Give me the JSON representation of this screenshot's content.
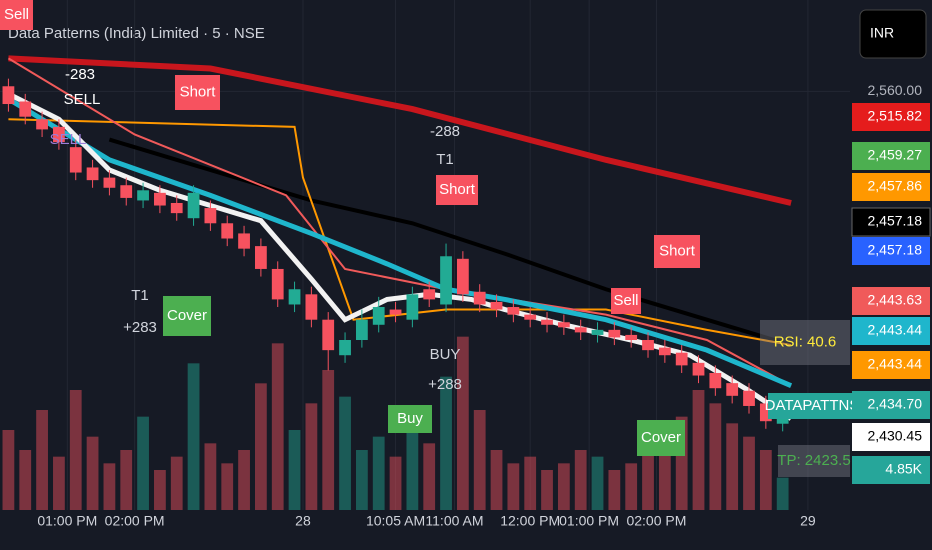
{
  "chart_data": {
    "type": "candlestick",
    "title": "Data Patterns (India) Limited · 5 · NSE",
    "currency_button": "INR",
    "xlim": [
      -1,
      100
    ],
    "ylim": [
      2395,
      2596
    ],
    "yticks": [
      {
        "value": 2560,
        "label": "2,560.00"
      }
    ],
    "xticks": [
      {
        "value": 7,
        "label": "01:00 PM"
      },
      {
        "value": 15,
        "label": "02:00 PM"
      },
      {
        "value": 35,
        "label": "28"
      },
      {
        "value": 46,
        "label": "10:05 AM"
      },
      {
        "value": 53,
        "label": "11:00 AM"
      },
      {
        "value": 62,
        "label": "12:00 PM"
      },
      {
        "value": 69,
        "label": "01:00 PM"
      },
      {
        "value": 77,
        "label": "02:00 PM"
      },
      {
        "value": 95,
        "label": "29"
      }
    ],
    "up_color": "#22ab94",
    "down_color": "#f7525f",
    "candles": {
      "x": [
        0,
        2,
        4,
        6,
        8,
        10,
        12,
        14,
        16,
        18,
        20,
        22,
        24,
        26,
        28,
        30,
        32,
        34,
        36,
        38,
        40,
        42,
        44,
        46,
        48,
        50,
        52,
        54,
        56,
        58,
        60,
        62,
        64,
        66,
        68,
        70,
        72,
        74,
        76,
        78,
        80,
        82,
        84,
        86,
        88,
        90,
        92
      ],
      "open": [
        2562,
        2556,
        2549,
        2546,
        2538,
        2530,
        2526,
        2523,
        2517,
        2520,
        2516,
        2510,
        2514,
        2508,
        2504,
        2499,
        2490,
        2476,
        2480,
        2470,
        2456,
        2462,
        2468,
        2474,
        2470,
        2482,
        2476,
        2494,
        2481,
        2477,
        2475,
        2472,
        2470,
        2469,
        2467,
        2464,
        2466,
        2464,
        2462,
        2459,
        2457,
        2453,
        2449,
        2445,
        2442,
        2437,
        2429
      ],
      "high": [
        2565,
        2559,
        2552,
        2549,
        2541,
        2533,
        2529,
        2526,
        2524,
        2523,
        2519,
        2523,
        2517,
        2511,
        2507,
        2502,
        2493,
        2485,
        2483,
        2473,
        2465,
        2474,
        2479,
        2477,
        2483,
        2485,
        2500,
        2497,
        2484,
        2480,
        2478,
        2475,
        2473,
        2472,
        2470,
        2469,
        2469,
        2467,
        2465,
        2462,
        2460,
        2456,
        2452,
        2448,
        2445,
        2440,
        2435
      ],
      "low": [
        2552,
        2547,
        2542,
        2537,
        2525,
        2522,
        2519,
        2515,
        2514,
        2512,
        2509,
        2507,
        2505,
        2499,
        2495,
        2487,
        2475,
        2473,
        2467,
        2450,
        2453,
        2459,
        2465,
        2469,
        2467,
        2475,
        2473,
        2477,
        2473,
        2471,
        2469,
        2467,
        2465,
        2464,
        2462,
        2461,
        2460,
        2459,
        2455,
        2453,
        2449,
        2445,
        2440,
        2437,
        2433,
        2427,
        2426
      ],
      "close": [
        2555,
        2550,
        2545,
        2540,
        2528,
        2525,
        2522,
        2518,
        2521,
        2515,
        2512,
        2520,
        2508,
        2502,
        2498,
        2490,
        2478,
        2482,
        2470,
        2458,
        2462,
        2470,
        2475,
        2472,
        2480,
        2478,
        2495,
        2480,
        2476,
        2474,
        2472,
        2470,
        2468,
        2467,
        2465,
        2466,
        2463,
        2462,
        2458,
        2456,
        2452,
        2448,
        2443,
        2440,
        2436,
        2430,
        2432
      ],
      "volume": [
        12000,
        9000,
        15000,
        8000,
        18000,
        11000,
        7000,
        9000,
        14000,
        6000,
        8000,
        22000,
        10000,
        7000,
        9000,
        19000,
        25000,
        12000,
        16000,
        21000,
        17000,
        9000,
        11000,
        8000,
        13000,
        10000,
        20000,
        26000,
        15000,
        9000,
        7000,
        8000,
        6000,
        7000,
        9000,
        8000,
        6000,
        7000,
        10000,
        12000,
        14000,
        18000,
        16000,
        13000,
        11000,
        9000,
        4850
      ]
    },
    "volume_lim": [
      0,
      30000
    ],
    "lines": [
      {
        "color": "#c8161d",
        "x": [
          0,
          24,
          48,
          71,
          93
        ],
        "values": [
          2573,
          2569,
          2553,
          2533,
          2516
        ]
      },
      {
        "color": "#000000",
        "x": [
          12,
          36,
          48,
          59,
          71,
          83,
          93
        ],
        "values": [
          2541,
          2517,
          2508,
          2496,
          2482,
          2470,
          2460
        ]
      },
      {
        "color": "#ff9800",
        "x": [
          0,
          34,
          35,
          41,
          52,
          71,
          83,
          93
        ],
        "values": [
          2549,
          2546,
          2526,
          2470,
          2474,
          2474,
          2466,
          2460
        ]
      },
      {
        "color": "#f05a5a",
        "x": [
          0,
          15,
          33,
          40,
          52,
          71,
          83,
          93
        ],
        "values": [
          2573,
          2543,
          2519,
          2490,
          2482,
          2472,
          2462,
          2444
        ]
      },
      {
        "color": "#1fb6cc",
        "x": [
          0,
          12,
          24,
          36,
          45,
          52,
          59,
          71,
          83,
          93
        ],
        "values": [
          2557,
          2533,
          2519,
          2504,
          2492,
          2482,
          2478,
          2470,
          2458,
          2444
        ]
      },
      {
        "color": "#f2f2f2",
        "x": [
          0,
          6,
          12,
          18,
          24,
          30,
          36,
          40,
          45,
          50,
          55,
          59,
          66,
          74,
          81,
          88,
          93
        ],
        "values": [
          2559,
          2549,
          2529,
          2521,
          2515,
          2509,
          2486,
          2470,
          2478,
          2480,
          2478,
          2474,
          2468,
          2462,
          2456,
          2442,
          2431
        ]
      }
    ],
    "price_labels": [
      {
        "value": 2515.82,
        "label": "2,515.82",
        "color": "#e51c1c"
      },
      {
        "value": 2459.27,
        "label": "2,459.27",
        "color": "#4caf50"
      },
      {
        "value": 2457.86,
        "label": "2,457.86",
        "color": "#ff9800"
      },
      {
        "value": 2457.18,
        "label": "2,457.18",
        "color": "#000000"
      },
      {
        "value": 2457.18,
        "label": "2,457.18",
        "color": "#2962ff"
      },
      {
        "value": 2443.63,
        "label": "2,443.63",
        "color": "#f05a5a"
      },
      {
        "value": 2443.44,
        "label": "2,443.44",
        "color": "#1fb6cc"
      },
      {
        "value": 2443.44,
        "label": "2,443.44",
        "color": "#ff9800"
      },
      {
        "value": 2434.7,
        "label": "2,434.70",
        "color": "#26a69a"
      },
      {
        "value": 2430.45,
        "label": "2,430.45",
        "color": "#ffffff"
      },
      {
        "value": 4850,
        "label": "4.85K",
        "color": "#26a69a"
      }
    ],
    "annotations": [
      {
        "text": "Sell",
        "color": "#f7525f"
      },
      {
        "text": "-283",
        "color": "#ffffff"
      },
      {
        "text": "SELL",
        "color": "#ffffff"
      },
      {
        "text": "Short",
        "color": "#f7525f"
      },
      {
        "text": "SELL",
        "color": "#9c7dd8"
      },
      {
        "text": "-288",
        "color": "#d1d4dc"
      },
      {
        "text": "T1",
        "color": "#d1d4dc"
      },
      {
        "text": "Short",
        "color": "#f7525f"
      },
      {
        "text": "Short",
        "color": "#f7525f"
      },
      {
        "text": "Sell",
        "color": "#f7525f"
      },
      {
        "text": "T1",
        "color": "#d1d4dc"
      },
      {
        "text": "+283",
        "color": "#d1d4dc"
      },
      {
        "text": "Cover",
        "color": "#4caf50"
      },
      {
        "text": "BUY",
        "color": "#d1d4dc"
      },
      {
        "text": "+288",
        "color": "#d1d4dc"
      },
      {
        "text": "Buy",
        "color": "#4caf50"
      },
      {
        "text": "Cover",
        "color": "#4caf50"
      },
      {
        "text": "RSI: 40.6",
        "color": "#ffeb3b"
      },
      {
        "text": "TP: 2423.5",
        "color": "#4caf50"
      },
      {
        "text": "DATAPATTNS",
        "color": "#26a69a"
      }
    ]
  }
}
